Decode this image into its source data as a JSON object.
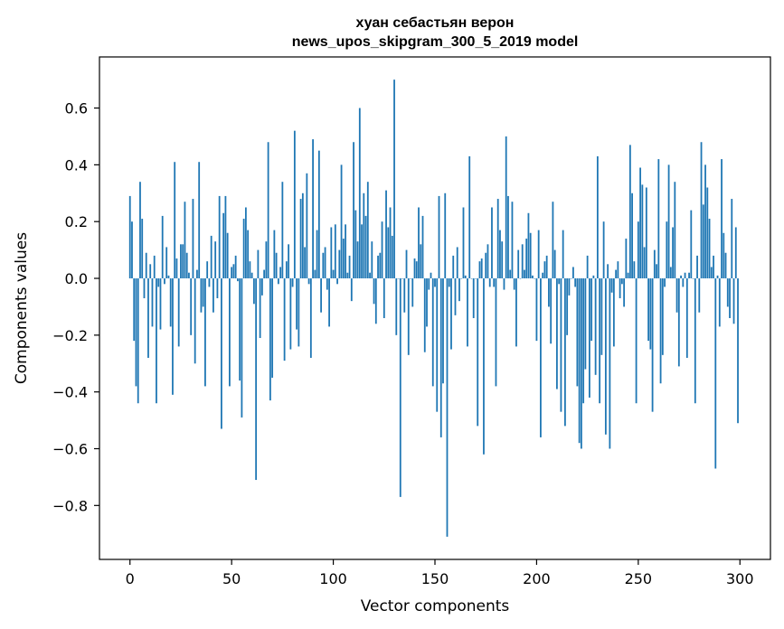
{
  "chart_data": {
    "type": "bar",
    "title_line1": "хуан себастьян верон",
    "title_line2": "news_upos_skipgram_300_5_2019 model",
    "xlabel": "Vector components",
    "ylabel": "Components values",
    "xlim": [
      -15,
      315
    ],
    "ylim": [
      -0.99,
      0.78
    ],
    "xticks": [
      0,
      50,
      100,
      150,
      200,
      250,
      300
    ],
    "xtick_labels": [
      "0",
      "50",
      "100",
      "150",
      "200",
      "250",
      "300"
    ],
    "yticks": [
      -0.8,
      -0.6,
      -0.4,
      -0.2,
      0.0,
      0.2,
      0.4,
      0.6
    ],
    "ytick_labels": [
      "−0.8",
      "−0.6",
      "−0.4",
      "−0.2",
      "0.0",
      "0.2",
      "0.4",
      "0.6"
    ],
    "bar_color": "#1f77b4",
    "series": [
      {
        "name": "components",
        "values": [
          0.29,
          0.2,
          -0.22,
          -0.38,
          -0.44,
          0.34,
          0.21,
          -0.07,
          0.09,
          -0.28,
          0.05,
          -0.17,
          0.08,
          -0.44,
          -0.03,
          -0.18,
          0.22,
          -0.02,
          0.11,
          0.01,
          -0.17,
          -0.41,
          0.41,
          0.07,
          -0.24,
          0.12,
          0.12,
          0.27,
          0.09,
          0.02,
          -0.2,
          0.28,
          -0.3,
          0.03,
          0.41,
          -0.12,
          -0.1,
          -0.38,
          0.06,
          -0.03,
          0.15,
          -0.12,
          0.13,
          -0.07,
          0.29,
          -0.53,
          0.23,
          0.29,
          0.16,
          -0.38,
          0.04,
          0.05,
          0.08,
          -0.01,
          -0.36,
          -0.49,
          0.21,
          0.25,
          0.17,
          0.06,
          0.02,
          -0.09,
          -0.71,
          0.1,
          -0.21,
          -0.06,
          0.03,
          0.13,
          0.48,
          -0.43,
          -0.35,
          0.17,
          0.09,
          -0.02,
          0.04,
          0.34,
          -0.29,
          0.06,
          0.12,
          -0.25,
          -0.03,
          0.52,
          -0.18,
          -0.24,
          0.28,
          0.3,
          0.11,
          0.37,
          -0.02,
          -0.28,
          0.49,
          0.03,
          0.17,
          0.45,
          -0.12,
          0.09,
          0.11,
          -0.04,
          -0.17,
          0.18,
          0.03,
          0.19,
          -0.02,
          0.1,
          0.4,
          0.14,
          0.19,
          0.02,
          0.08,
          -0.08,
          0.48,
          0.24,
          0.13,
          0.6,
          0.19,
          0.3,
          0.22,
          0.34,
          0.02,
          0.13,
          -0.09,
          -0.16,
          0.08,
          0.09,
          0.2,
          -0.14,
          0.31,
          0.18,
          0.25,
          0.15,
          0.7,
          -0.2,
          0.0,
          -0.77,
          0.0,
          -0.12,
          0.1,
          -0.27,
          0.0,
          -0.1,
          0.07,
          0.06,
          0.25,
          0.12,
          0.22,
          -0.26,
          -0.17,
          -0.04,
          0.02,
          -0.38,
          -0.03,
          -0.47,
          0.29,
          -0.56,
          -0.37,
          0.3,
          -0.91,
          -0.03,
          -0.25,
          0.08,
          -0.13,
          0.11,
          -0.08,
          0.0,
          0.25,
          0.01,
          -0.24,
          0.43,
          0.0,
          -0.14,
          0.0,
          -0.52,
          0.06,
          0.07,
          -0.62,
          0.09,
          0.12,
          -0.03,
          0.25,
          -0.03,
          -0.38,
          0.28,
          0.17,
          0.13,
          -0.04,
          0.5,
          0.29,
          0.03,
          0.27,
          -0.04,
          -0.24,
          0.1,
          0.0,
          0.12,
          0.03,
          0.14,
          0.23,
          0.16,
          0.01,
          0.0,
          -0.22,
          0.17,
          -0.56,
          0.02,
          0.06,
          0.08,
          -0.1,
          -0.23,
          0.27,
          0.1,
          -0.39,
          -0.02,
          -0.47,
          0.17,
          -0.52,
          -0.2,
          -0.06,
          0.0,
          0.04,
          -0.03,
          -0.38,
          -0.58,
          -0.6,
          -0.44,
          -0.32,
          0.08,
          -0.42,
          -0.22,
          0.01,
          -0.34,
          0.43,
          -0.44,
          -0.27,
          0.2,
          -0.55,
          0.05,
          -0.6,
          -0.05,
          -0.24,
          0.03,
          0.06,
          -0.07,
          -0.02,
          -0.1,
          0.14,
          0.02,
          0.47,
          0.3,
          0.06,
          -0.44,
          0.2,
          0.39,
          0.33,
          0.11,
          0.32,
          -0.22,
          -0.25,
          -0.47,
          0.1,
          0.05,
          0.42,
          -0.37,
          -0.27,
          -0.03,
          0.2,
          0.4,
          0.04,
          0.18,
          0.34,
          -0.12,
          -0.31,
          0.01,
          -0.03,
          0.02,
          -0.28,
          0.02,
          0.24,
          0.0,
          -0.44,
          0.08,
          -0.12,
          0.48,
          0.26,
          0.4,
          0.32,
          0.21,
          0.04,
          0.08,
          -0.67,
          0.01,
          -0.17,
          0.42,
          0.16,
          0.09,
          -0.1,
          -0.14,
          0.28,
          -0.16,
          0.18,
          -0.51
        ]
      }
    ]
  }
}
